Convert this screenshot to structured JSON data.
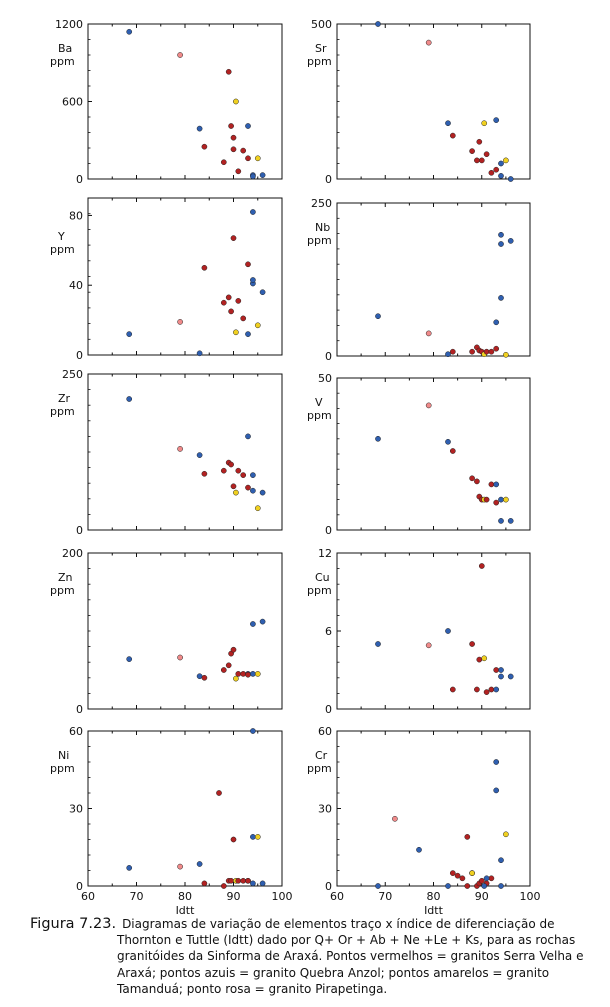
{
  "colors": {
    "red": "#b22222",
    "blue": "#2f5fb0",
    "yellow": "#f0d020",
    "pink": "#f08a8a",
    "frame": "#111111"
  },
  "caption": {
    "figure": "Figura 7.23.",
    "lines": [
      "Diagramas de variação de elementos traço x índice de diferenciação de",
      "Thornton e Tuttle (Idtt) dado por Q+ Or + Ab + Ne +Le + Ks, para as rochas",
      "granitóides da Sinforma de Araxá. Pontos vermelhos = granitos Serra Velha e",
      "Araxá; pontos azuis = granito Quebra Anzol; pontos amarelos = granito",
      "Tamanduá; ponto rosa = granito Pirapetinga."
    ]
  },
  "chart_data": [
    {
      "type": "scatter",
      "element": "Ba",
      "ylabel": [
        "Ba",
        "ppm"
      ],
      "ylim": [
        0,
        1200
      ],
      "yticks": [
        "0",
        "600",
        "1200"
      ],
      "points": [
        [
          68.5,
          1140,
          "blue"
        ],
        [
          79,
          960,
          "pink"
        ],
        [
          83,
          390,
          "blue"
        ],
        [
          84,
          250,
          "red"
        ],
        [
          88,
          130,
          "red"
        ],
        [
          89,
          830,
          "red"
        ],
        [
          89.5,
          410,
          "red"
        ],
        [
          90,
          320,
          "red"
        ],
        [
          90.5,
          600,
          "yellow"
        ],
        [
          90,
          230,
          "red"
        ],
        [
          91,
          60,
          "red"
        ],
        [
          92,
          220,
          "red"
        ],
        [
          93,
          410,
          "blue"
        ],
        [
          93,
          160,
          "red"
        ],
        [
          94,
          30,
          "blue"
        ],
        [
          94,
          20,
          "blue"
        ],
        [
          95,
          160,
          "yellow"
        ],
        [
          96,
          30,
          "blue"
        ]
      ]
    },
    {
      "type": "scatter",
      "element": "Sr",
      "ylabel": [
        "Sr",
        "ppm"
      ],
      "ylim": [
        0,
        500
      ],
      "yticks": [
        "0",
        "500"
      ],
      "points": [
        [
          68.5,
          500,
          "blue"
        ],
        [
          79,
          440,
          "pink"
        ],
        [
          83,
          180,
          "blue"
        ],
        [
          84,
          140,
          "red"
        ],
        [
          88,
          90,
          "red"
        ],
        [
          89,
          60,
          "red"
        ],
        [
          89.5,
          120,
          "red"
        ],
        [
          90,
          60,
          "red"
        ],
        [
          90.5,
          180,
          "yellow"
        ],
        [
          91,
          80,
          "red"
        ],
        [
          92,
          20,
          "red"
        ],
        [
          93,
          190,
          "blue"
        ],
        [
          93,
          30,
          "red"
        ],
        [
          94,
          10,
          "blue"
        ],
        [
          94,
          50,
          "blue"
        ],
        [
          95,
          60,
          "yellow"
        ],
        [
          96,
          0,
          "blue"
        ]
      ]
    },
    {
      "type": "scatter",
      "element": "Y",
      "ylabel": [
        "Y",
        "ppm"
      ],
      "ylim": [
        0,
        90
      ],
      "yticks": [
        "0",
        "40",
        "80"
      ],
      "points": [
        [
          68.5,
          12,
          "blue"
        ],
        [
          79,
          19,
          "pink"
        ],
        [
          83,
          1,
          "blue"
        ],
        [
          84,
          50,
          "red"
        ],
        [
          88,
          30,
          "red"
        ],
        [
          89,
          33,
          "red"
        ],
        [
          89.5,
          25,
          "red"
        ],
        [
          90,
          67,
          "red"
        ],
        [
          90.5,
          13,
          "yellow"
        ],
        [
          91,
          31,
          "red"
        ],
        [
          92,
          21,
          "red"
        ],
        [
          93,
          12,
          "blue"
        ],
        [
          93,
          52,
          "red"
        ],
        [
          94,
          41,
          "blue"
        ],
        [
          94,
          43,
          "blue"
        ],
        [
          94,
          82,
          "blue"
        ],
        [
          95,
          17,
          "yellow"
        ],
        [
          96,
          36,
          "blue"
        ]
      ]
    },
    {
      "type": "scatter",
      "element": "Nb",
      "ylabel": [
        "Nb",
        "ppm"
      ],
      "ylim": [
        0,
        250
      ],
      "yticks": [
        "0",
        "250"
      ],
      "points": [
        [
          68.5,
          65,
          "blue"
        ],
        [
          79,
          37,
          "pink"
        ],
        [
          83,
          3,
          "blue"
        ],
        [
          84,
          7,
          "red"
        ],
        [
          88,
          7,
          "red"
        ],
        [
          89,
          14,
          "red"
        ],
        [
          89.5,
          9,
          "red"
        ],
        [
          90,
          7,
          "red"
        ],
        [
          90.5,
          3,
          "yellow"
        ],
        [
          91,
          7,
          "red"
        ],
        [
          92,
          7,
          "red"
        ],
        [
          93,
          55,
          "blue"
        ],
        [
          93,
          12,
          "red"
        ],
        [
          94,
          95,
          "blue"
        ],
        [
          94,
          183,
          "blue"
        ],
        [
          94,
          198,
          "blue"
        ],
        [
          95,
          2,
          "yellow"
        ],
        [
          96,
          188,
          "blue"
        ]
      ]
    },
    {
      "type": "scatter",
      "element": "Zr",
      "ylabel": [
        "Zr",
        "ppm"
      ],
      "ylim": [
        0,
        250
      ],
      "yticks": [
        "0",
        "250"
      ],
      "points": [
        [
          68.5,
          210,
          "blue"
        ],
        [
          79,
          130,
          "pink"
        ],
        [
          83,
          120,
          "blue"
        ],
        [
          84,
          90,
          "red"
        ],
        [
          88,
          95,
          "red"
        ],
        [
          89,
          108,
          "red"
        ],
        [
          89.5,
          105,
          "red"
        ],
        [
          90,
          70,
          "red"
        ],
        [
          90.5,
          60,
          "yellow"
        ],
        [
          91,
          95,
          "red"
        ],
        [
          92,
          88,
          "red"
        ],
        [
          93,
          150,
          "blue"
        ],
        [
          93,
          68,
          "red"
        ],
        [
          94,
          63,
          "blue"
        ],
        [
          94,
          88,
          "blue"
        ],
        [
          95,
          35,
          "yellow"
        ],
        [
          96,
          60,
          "blue"
        ]
      ]
    },
    {
      "type": "scatter",
      "element": "V",
      "ylabel": [
        "V",
        "ppm"
      ],
      "ylim": [
        0,
        50
      ],
      "yticks": [
        "0",
        "50"
      ],
      "points": [
        [
          68.5,
          30,
          "blue"
        ],
        [
          79,
          41,
          "pink"
        ],
        [
          83,
          29,
          "blue"
        ],
        [
          84,
          26,
          "red"
        ],
        [
          88,
          17,
          "red"
        ],
        [
          89,
          16,
          "red"
        ],
        [
          89.5,
          11,
          "red"
        ],
        [
          90,
          10,
          "red"
        ],
        [
          90.5,
          10,
          "yellow"
        ],
        [
          91,
          10,
          "red"
        ],
        [
          92,
          15,
          "red"
        ],
        [
          93,
          15,
          "blue"
        ],
        [
          93,
          9,
          "red"
        ],
        [
          94,
          10,
          "blue"
        ],
        [
          94,
          3,
          "blue"
        ],
        [
          95,
          10,
          "yellow"
        ],
        [
          96,
          3,
          "blue"
        ]
      ]
    },
    {
      "type": "scatter",
      "element": "Zn",
      "ylabel": [
        "Zn",
        "ppm"
      ],
      "ylim": [
        0,
        200
      ],
      "yticks": [
        "0",
        "200"
      ],
      "points": [
        [
          68.5,
          64,
          "blue"
        ],
        [
          79,
          66,
          "pink"
        ],
        [
          83,
          42,
          "blue"
        ],
        [
          84,
          40,
          "red"
        ],
        [
          88,
          50,
          "red"
        ],
        [
          89,
          56,
          "red"
        ],
        [
          89.5,
          71,
          "red"
        ],
        [
          90,
          76,
          "red"
        ],
        [
          90.5,
          39,
          "yellow"
        ],
        [
          91,
          45,
          "red"
        ],
        [
          92,
          45,
          "red"
        ],
        [
          93,
          45,
          "blue"
        ],
        [
          93,
          44,
          "red"
        ],
        [
          94,
          109,
          "blue"
        ],
        [
          94,
          45,
          "blue"
        ],
        [
          95,
          45,
          "yellow"
        ],
        [
          96,
          112,
          "blue"
        ]
      ]
    },
    {
      "type": "scatter",
      "element": "Cu",
      "ylabel": [
        "Cu",
        "ppm"
      ],
      "ylim": [
        0,
        12
      ],
      "yticks": [
        "0",
        "6",
        "12"
      ],
      "points": [
        [
          68.5,
          5,
          "blue"
        ],
        [
          79,
          4.9,
          "pink"
        ],
        [
          83,
          6,
          "blue"
        ],
        [
          84,
          1.5,
          "red"
        ],
        [
          88,
          5,
          "red"
        ],
        [
          89,
          1.5,
          "red"
        ],
        [
          89.5,
          3.8,
          "red"
        ],
        [
          90,
          11,
          "red"
        ],
        [
          90.5,
          3.9,
          "yellow"
        ],
        [
          91,
          1.3,
          "red"
        ],
        [
          92,
          1.5,
          "red"
        ],
        [
          93,
          1.5,
          "blue"
        ],
        [
          93,
          3,
          "red"
        ],
        [
          94,
          2.5,
          "blue"
        ],
        [
          94,
          3,
          "blue"
        ],
        [
          96,
          2.5,
          "blue"
        ]
      ]
    },
    {
      "type": "scatter",
      "element": "Ni",
      "ylabel": [
        "Ni",
        "ppm"
      ],
      "ylim": [
        0,
        60
      ],
      "yticks": [
        "0",
        "30",
        "60"
      ],
      "points": [
        [
          68.5,
          7,
          "blue"
        ],
        [
          79,
          7.5,
          "pink"
        ],
        [
          83,
          8.5,
          "blue"
        ],
        [
          84,
          1,
          "red"
        ],
        [
          88,
          0,
          "red"
        ],
        [
          89,
          2,
          "red"
        ],
        [
          89.5,
          2,
          "red"
        ],
        [
          90,
          18,
          "red"
        ],
        [
          90.5,
          2,
          "yellow"
        ],
        [
          91,
          2,
          "red"
        ],
        [
          92,
          2,
          "red"
        ],
        [
          93,
          2,
          "blue"
        ],
        [
          93,
          2,
          "red"
        ],
        [
          94,
          19,
          "blue"
        ],
        [
          94,
          60,
          "blue"
        ],
        [
          94,
          1,
          "blue"
        ],
        [
          95,
          19,
          "yellow"
        ],
        [
          96,
          1,
          "blue"
        ],
        [
          87,
          36,
          "red"
        ]
      ]
    },
    {
      "type": "scatter",
      "element": "Cr",
      "ylabel": [
        "Cr",
        "ppm"
      ],
      "ylim": [
        0,
        60
      ],
      "yticks": [
        "0",
        "30",
        "60"
      ],
      "points": [
        [
          68.5,
          0,
          "blue"
        ],
        [
          72,
          26,
          "pink"
        ],
        [
          77,
          14,
          "blue"
        ],
        [
          83,
          0,
          "blue"
        ],
        [
          84,
          5,
          "red"
        ],
        [
          85,
          4,
          "red"
        ],
        [
          86,
          3,
          "red"
        ],
        [
          87,
          0,
          "red"
        ],
        [
          88,
          5,
          "red"
        ],
        [
          89,
          0,
          "red"
        ],
        [
          89.5,
          1,
          "red"
        ],
        [
          90,
          2,
          "red"
        ],
        [
          91,
          1,
          "red"
        ],
        [
          92,
          3,
          "red"
        ],
        [
          93,
          37,
          "blue"
        ],
        [
          93,
          48,
          "blue"
        ],
        [
          94,
          10,
          "blue"
        ],
        [
          94,
          0,
          "blue"
        ],
        [
          95,
          20,
          "yellow"
        ],
        [
          88,
          5,
          "yellow"
        ],
        [
          87,
          19,
          "red"
        ],
        [
          90.5,
          0,
          "blue"
        ],
        [
          91,
          3,
          "blue"
        ]
      ]
    }
  ],
  "xaxis": {
    "xlim": [
      60,
      100
    ],
    "ticks": [
      "60",
      "70",
      "80",
      "90",
      "100"
    ],
    "label": "Idtt"
  }
}
